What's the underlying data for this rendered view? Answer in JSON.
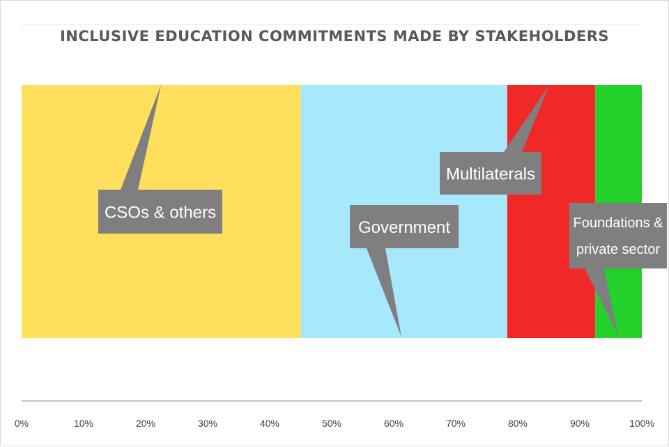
{
  "chart_data": {
    "type": "bar",
    "orientation": "horizontal-stacked-100",
    "title": "INCLUSIVE EDUCATION COMMITMENTS MADE BY STAKEHOLDERS",
    "xlabel": "",
    "ylabel": "",
    "xlim": [
      0,
      100
    ],
    "x_ticks": [
      "0%",
      "10%",
      "20%",
      "30%",
      "40%",
      "50%",
      "60%",
      "70%",
      "80%",
      "90%",
      "100%"
    ],
    "grid": false,
    "legend": "none",
    "series": [
      {
        "name": "CSOs & others",
        "label_lines": [
          "CSOs & others"
        ],
        "value": 45,
        "color": "#FFDF5C"
      },
      {
        "name": "Government",
        "label_lines": [
          "Government"
        ],
        "value": 33.3,
        "color": "#A7E8FC"
      },
      {
        "name": "Multilaterals",
        "label_lines": [
          "Multilaterals"
        ],
        "value": 14.2,
        "color": "#F02828"
      },
      {
        "name": "Foundations & private sector",
        "label_lines": [
          "Foundations &",
          "private sector"
        ],
        "value": 7.5,
        "color": "#22D22B"
      }
    ],
    "callout_color": "#7F7F7F"
  }
}
